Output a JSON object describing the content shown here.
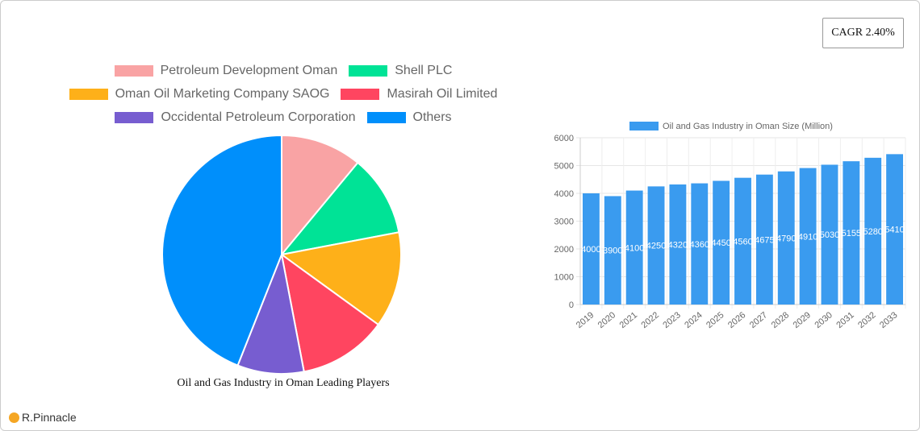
{
  "cagr_label": "CAGR 2.40%",
  "brand": "R.Pinnacle",
  "chart_data": [
    {
      "type": "pie",
      "title": "Oil and Gas Industry in Oman Leading Players",
      "legend_placement": "top",
      "slices": [
        {
          "name": "Petroleum Development Oman",
          "value": 11,
          "color": "#f9a3a4"
        },
        {
          "name": "Shell PLC",
          "value": 11,
          "color": "#00e396"
        },
        {
          "name": "Oman Oil Marketing Company SAOG",
          "value": 13,
          "color": "#feb019"
        },
        {
          "name": "Masirah Oil Limited",
          "value": 12,
          "color": "#ff4560"
        },
        {
          "name": "Occidental Petroleum Corporation",
          "value": 9,
          "color": "#775dd0"
        },
        {
          "name": "Others",
          "value": 44,
          "color": "#008ffb"
        }
      ]
    },
    {
      "type": "bar",
      "legend": "Oil and Gas Industry in Oman Size (Million)",
      "legend_placement": "top",
      "color": "#3a9bef",
      "categories": [
        "2019",
        "2020",
        "2021",
        "2022",
        "2023",
        "2024",
        "2025",
        "2026",
        "2027",
        "2028",
        "2029",
        "2030",
        "2031",
        "2032",
        "2033"
      ],
      "values": [
        4000,
        3900,
        4100,
        4250,
        4320,
        4360,
        4450,
        4560,
        4675,
        4790,
        4910,
        5030,
        5155,
        5280,
        5410
      ],
      "ylim": [
        0,
        6000
      ],
      "yticks": [
        0,
        1000,
        2000,
        3000,
        4000,
        5000,
        6000
      ],
      "grid": true
    }
  ]
}
